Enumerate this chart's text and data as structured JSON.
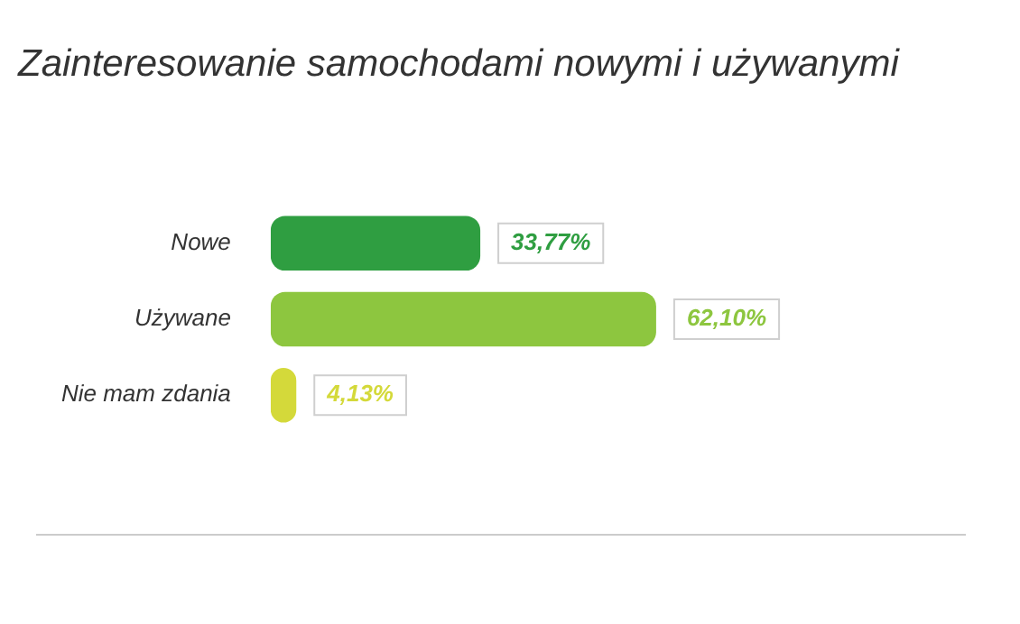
{
  "chart_data": {
    "type": "bar",
    "orientation": "horizontal",
    "title": "Zainteresowanie samochodami nowymi i używanymi",
    "categories": [
      "Nowe",
      "Używane",
      "Nie mam zdania"
    ],
    "values": [
      33.77,
      62.1,
      4.13
    ],
    "colors": [
      "#2f9e41",
      "#8dc63f",
      "#d4d93a"
    ],
    "value_labels": [
      "33,77%",
      "62,10%",
      "4,13%"
    ]
  }
}
